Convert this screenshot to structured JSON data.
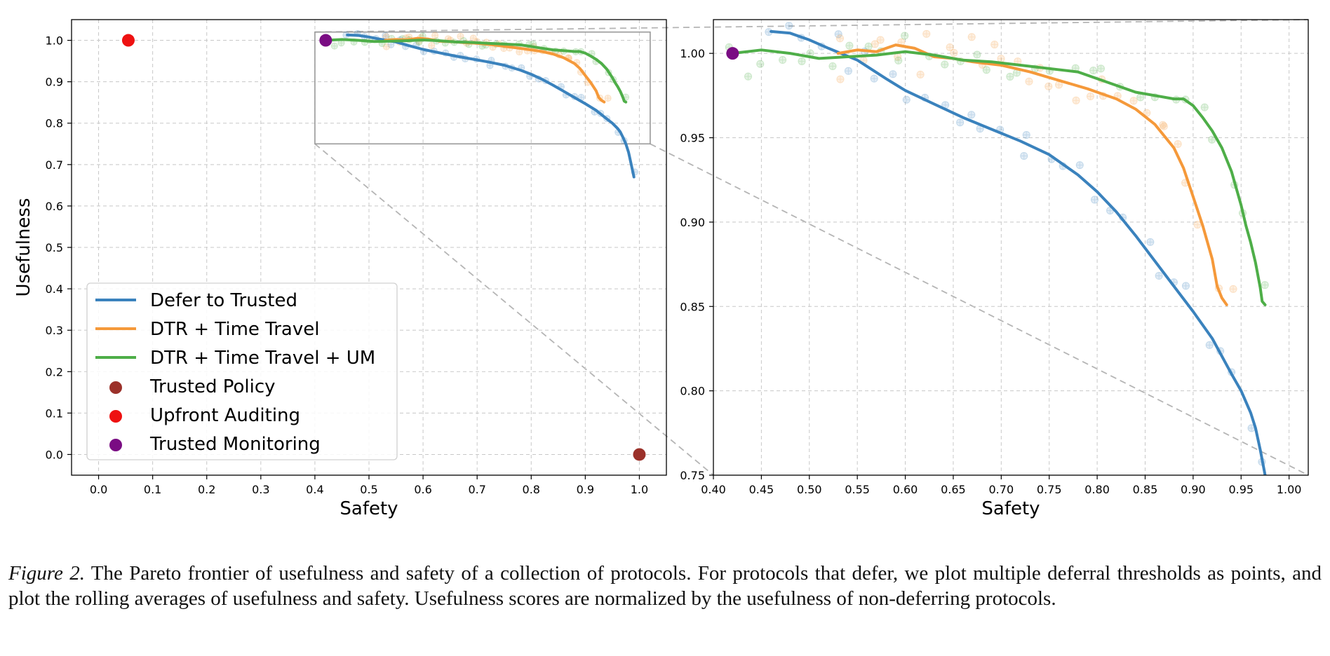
{
  "colors": {
    "defer": "#3a82bd",
    "dtr_tt": "#f5993a",
    "dtr_tt_um": "#4eae48",
    "trusted_policy": "#9b312a",
    "upfront_auditing": "#ee1111",
    "trusted_monitoring": "#7a0c83",
    "grid": "#c8c8c8",
    "zoom_box": "#999999"
  },
  "legend": {
    "placement": "lower-left",
    "entries": [
      {
        "label": "Defer to Trusted",
        "kind": "line",
        "color_key": "defer"
      },
      {
        "label": "DTR + Time Travel",
        "kind": "line",
        "color_key": "dtr_tt"
      },
      {
        "label": "DTR + Time Travel + UM",
        "kind": "line",
        "color_key": "dtr_tt_um"
      },
      {
        "label": "Trusted Policy",
        "kind": "dot",
        "color_key": "trusted_policy"
      },
      {
        "label": "Upfront Auditing",
        "kind": "dot",
        "color_key": "upfront_auditing"
      },
      {
        "label": "Trusted Monitoring",
        "kind": "dot",
        "color_key": "trusted_monitoring"
      }
    ]
  },
  "chart_data": [
    {
      "type": "line",
      "panel": "full",
      "xlabel": "Safety",
      "ylabel": "Usefulness",
      "xlim": [
        -0.05,
        1.05
      ],
      "ylim": [
        -0.05,
        1.05
      ],
      "xticks": [
        0.0,
        0.1,
        0.2,
        0.3,
        0.4,
        0.5,
        0.6,
        0.7,
        0.8,
        0.9,
        1.0
      ],
      "yticks": [
        0.0,
        0.1,
        0.2,
        0.3,
        0.4,
        0.5,
        0.6,
        0.7,
        0.8,
        0.9,
        1.0
      ],
      "tick_decimals": 1,
      "grid": true,
      "zoom_region": {
        "x": [
          0.4,
          1.02
        ],
        "y": [
          0.75,
          1.02
        ]
      },
      "markers": [
        {
          "name": "Trusted Policy",
          "x": 1.0,
          "y": 0.0
        },
        {
          "name": "Upfront Auditing",
          "x": 0.055,
          "y": 1.0
        },
        {
          "name": "Trusted Monitoring",
          "x": 0.42,
          "y": 1.0
        }
      ],
      "series": [
        {
          "name": "Defer to Trusted",
          "x": [
            0.46,
            0.48,
            0.5,
            0.52,
            0.55,
            0.58,
            0.6,
            0.63,
            0.66,
            0.69,
            0.72,
            0.75,
            0.78,
            0.8,
            0.82,
            0.84,
            0.86,
            0.88,
            0.9,
            0.92,
            0.94,
            0.95,
            0.96,
            0.965,
            0.97,
            0.975,
            0.98,
            0.985,
            0.99
          ],
          "y": [
            1.013,
            1.012,
            1.008,
            1.003,
            0.996,
            0.985,
            0.978,
            0.97,
            0.962,
            0.955,
            0.948,
            0.94,
            0.928,
            0.918,
            0.906,
            0.892,
            0.877,
            0.862,
            0.847,
            0.831,
            0.81,
            0.8,
            0.787,
            0.778,
            0.765,
            0.75,
            0.73,
            0.7,
            0.67
          ]
        },
        {
          "name": "DTR + Time Travel",
          "x": [
            0.53,
            0.55,
            0.57,
            0.59,
            0.61,
            0.63,
            0.65,
            0.67,
            0.7,
            0.73,
            0.76,
            0.79,
            0.82,
            0.84,
            0.86,
            0.88,
            0.89,
            0.9,
            0.91,
            0.92,
            0.925,
            0.93,
            0.935
          ],
          "y": [
            1.0,
            1.002,
            1.001,
            1.005,
            1.003,
            0.998,
            0.997,
            0.995,
            0.993,
            0.989,
            0.984,
            0.979,
            0.973,
            0.967,
            0.958,
            0.944,
            0.932,
            0.915,
            0.898,
            0.878,
            0.862,
            0.855,
            0.851
          ]
        },
        {
          "name": "DTR + Time Travel + UM",
          "x": [
            0.42,
            0.45,
            0.48,
            0.51,
            0.54,
            0.57,
            0.6,
            0.63,
            0.66,
            0.69,
            0.72,
            0.75,
            0.78,
            0.8,
            0.82,
            0.84,
            0.86,
            0.88,
            0.89,
            0.9,
            0.91,
            0.92,
            0.93,
            0.94,
            0.95,
            0.955,
            0.96,
            0.965,
            0.97,
            0.972,
            0.975
          ],
          "y": [
            1.0,
            1.002,
            1.0,
            0.997,
            0.998,
            0.999,
            1.001,
            0.999,
            0.996,
            0.995,
            0.993,
            0.991,
            0.989,
            0.985,
            0.981,
            0.977,
            0.975,
            0.973,
            0.973,
            0.969,
            0.962,
            0.954,
            0.944,
            0.93,
            0.91,
            0.898,
            0.888,
            0.876,
            0.861,
            0.853,
            0.851
          ]
        }
      ]
    },
    {
      "type": "line",
      "panel": "zoom",
      "xlabel": "Safety",
      "ylabel": "",
      "xlim": [
        0.4,
        1.02
      ],
      "ylim": [
        0.75,
        1.02
      ],
      "xticks": [
        0.4,
        0.45,
        0.5,
        0.55,
        0.6,
        0.65,
        0.7,
        0.75,
        0.8,
        0.85,
        0.9,
        0.95,
        1.0
      ],
      "yticks": [
        0.75,
        0.8,
        0.85,
        0.9,
        0.95,
        1.0
      ],
      "tick_decimals": 2,
      "grid": true,
      "markers": [
        {
          "name": "Trusted Monitoring",
          "x": 0.42,
          "y": 1.0
        }
      ]
    }
  ],
  "caption": {
    "lead": "Figure 2.",
    "text": " The Pareto frontier of usefulness and safety of a collection of protocols. For protocols that defer, we plot multiple deferral thresholds as points, and plot the rolling averages of usefulness and safety. Usefulness scores are normalized by the usefulness of non-deferring protocols."
  }
}
